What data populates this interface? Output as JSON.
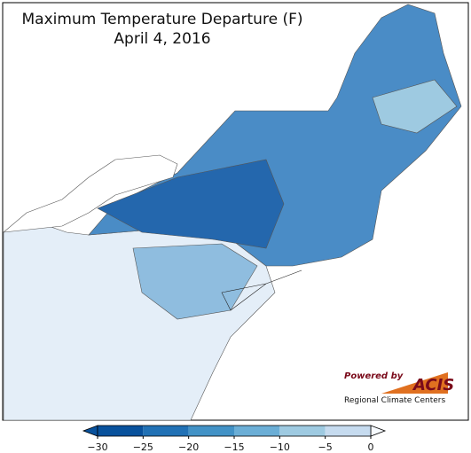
{
  "title": "Maximum Temperature Departure (F)",
  "subtitle": "April 4, 2016",
  "colorbar": {
    "ticks": [
      {
        "value": -30,
        "label": "−30"
      },
      {
        "value": -25,
        "label": "−25"
      },
      {
        "value": -20,
        "label": "−20"
      },
      {
        "value": -15,
        "label": "−15"
      },
      {
        "value": -10,
        "label": "−10"
      },
      {
        "value": -5,
        "label": "−5"
      },
      0
    ],
    "colors": [
      "#08519c",
      "#08519c",
      "#2171b5",
      "#4292c6",
      "#6baed6",
      "#9ecae1",
      "#c6dbef",
      "#f7fbff"
    ]
  },
  "logo": {
    "powered": "Powered by",
    "name": "ACIS",
    "tagline": "Regional Climate Centers"
  }
}
